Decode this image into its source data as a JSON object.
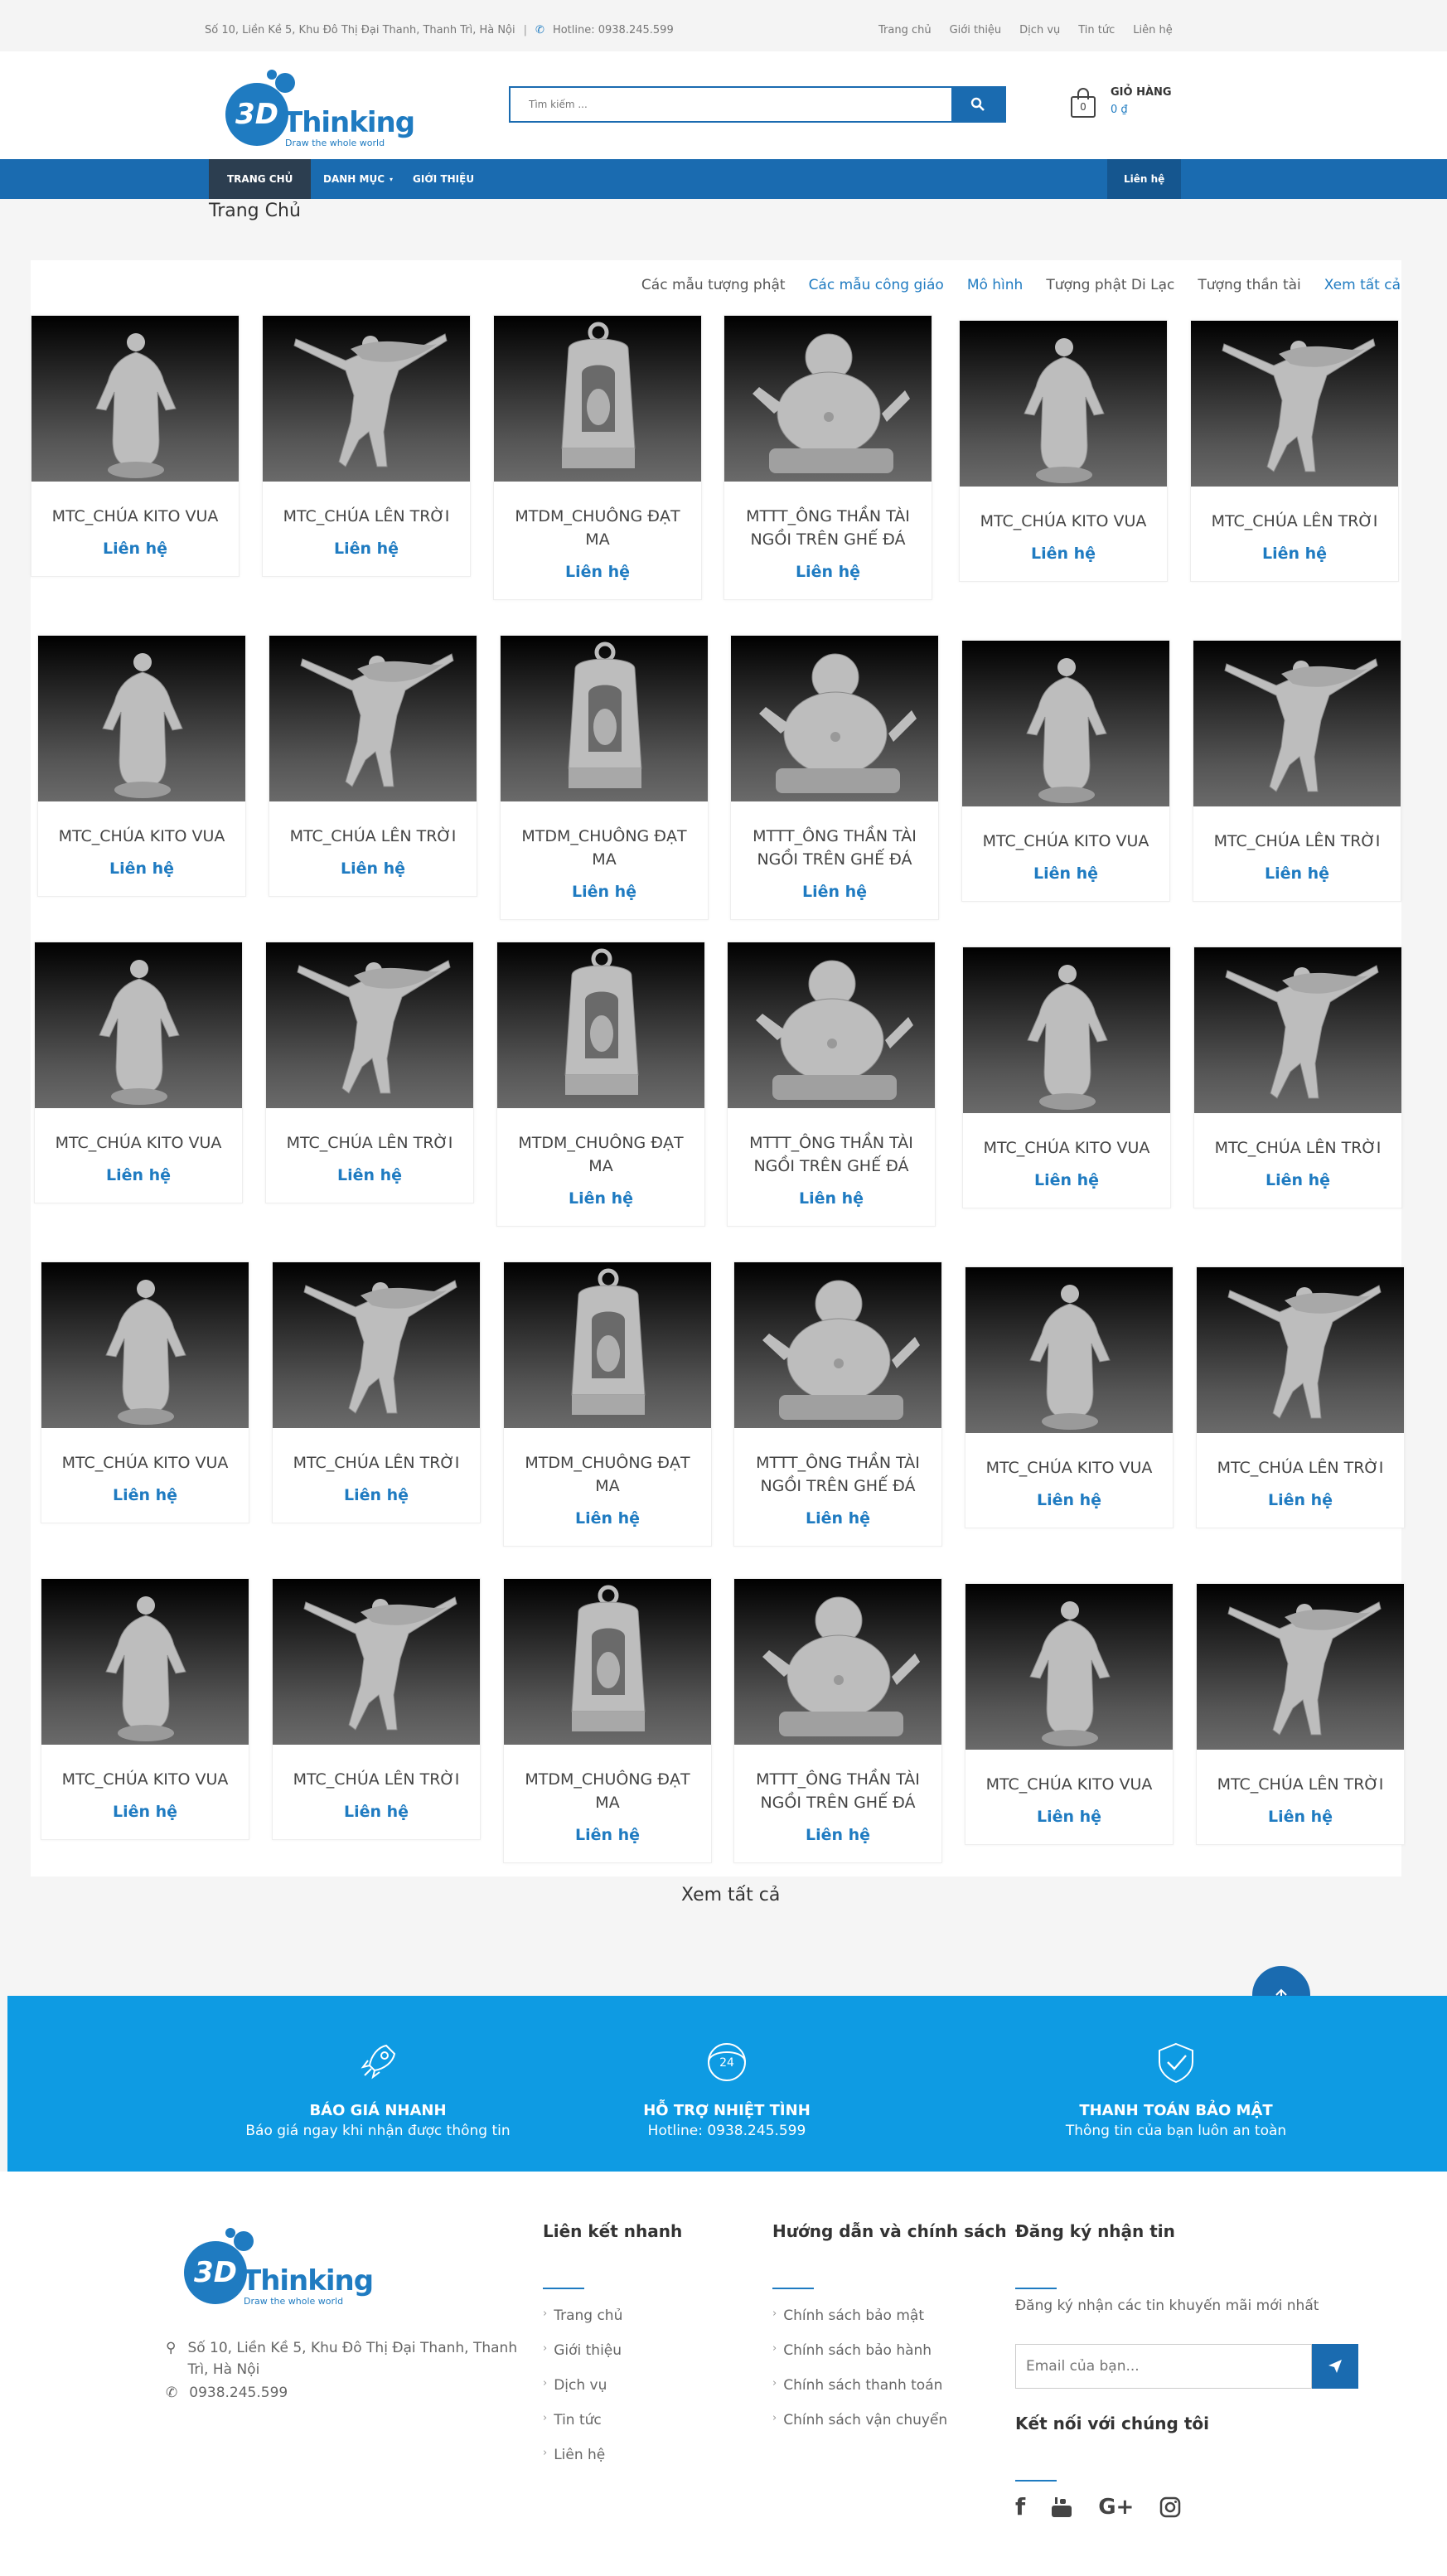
{
  "topbar": {
    "address": "Số 10, Liền Kề 5, Khu Đô Thị Đại Thanh, Thanh Trì, Hà Nội",
    "separator": "|",
    "hotline": "Hotline: 0938.245.599",
    "links": [
      "Trang chủ",
      "Giới thiệu",
      "Dịch vụ",
      "Tin tức",
      "Liên hệ"
    ]
  },
  "logo": {
    "mark": "3D",
    "word": "Thinking",
    "tagline": "Draw the whole world"
  },
  "search": {
    "placeholder": "Tìm kiếm ..."
  },
  "cart": {
    "label": "GIỎ HÀNG",
    "total": "0 ₫",
    "count": "0"
  },
  "nav": {
    "home": "TRANG CHỦ",
    "category": "DANH MỤC",
    "about": "GIỚI THIỆU",
    "contact": "Liên hệ"
  },
  "breadcrumb": "Trang Chủ",
  "tabs": [
    "Các mẫu tượng phật",
    "Các mẫu công giáo",
    "Mô hình",
    "Tượng phật Di Lạc",
    "Tượng thần tài",
    "Xem tất cả"
  ],
  "products": [
    {
      "name": "MTC_CHÚA KITO VUA",
      "price": "Liên hệ",
      "img": "christ"
    },
    {
      "name": "MTC_CHÚA LÊN TRỜI",
      "price": "Liên hệ",
      "img": "ascension"
    },
    {
      "name": "MTDM_CHUÔNG ĐẠT MA",
      "price": "Liên hệ",
      "img": "bell"
    },
    {
      "name": "MTTT_ÔNG THẦN TÀI NGỒI TRÊN GHẾ ĐÁ",
      "price": "Liên hệ",
      "img": "buddha"
    },
    {
      "name": "MTC_CHÚA KITO VUA",
      "price": "Liên hệ",
      "img": "christ"
    },
    {
      "name": "MTC_CHÚA LÊN TRỜI",
      "price": "Liên hệ",
      "img": "ascension"
    }
  ],
  "view_all": "Xem tất cả",
  "features": [
    {
      "title": "BÁO GIÁ NHANH",
      "sub": "Báo giá ngay khi nhận được thông tin",
      "icon": "rocket-icon"
    },
    {
      "title": "HỖ TRỢ NHIỆT TÌNH",
      "sub": "Hotline: 0938.245.599",
      "icon": "support-24-icon",
      "badge": "24"
    },
    {
      "title": "THANH TOÁN BẢO MẬT",
      "sub": "Thông tin của bạn luôn an toàn",
      "icon": "shield-check-icon"
    }
  ],
  "footer": {
    "address": "Số 10, Liền Kề 5, Khu Đô Thị Đại Thanh, Thanh Trì, Hà Nội",
    "phone": "0938.245.599",
    "quick_links_title": "Liên kết nhanh",
    "quick_links": [
      "Trang chủ",
      "Giới thiệu",
      "Dịch vụ",
      "Tin tức",
      "Liên hệ"
    ],
    "policy_title": "Hướng dẫn và chính sách",
    "policies": [
      "Chính sách bảo mật",
      "Chính sách bảo hành",
      "Chính sách thanh toán",
      "Chính sách vận chuyển"
    ],
    "subscribe_title": "Đăng ký nhận tin",
    "subscribe_desc": "Đăng ký nhận các tin khuyến mãi mới nhất",
    "email_placeholder": "Email của bạn...",
    "connect_title": "Kết nối với chúng tôi"
  },
  "colors": {
    "primary": "#1a6bb0",
    "accent": "#1f7bc1",
    "feature_bg": "#0e9be3"
  }
}
